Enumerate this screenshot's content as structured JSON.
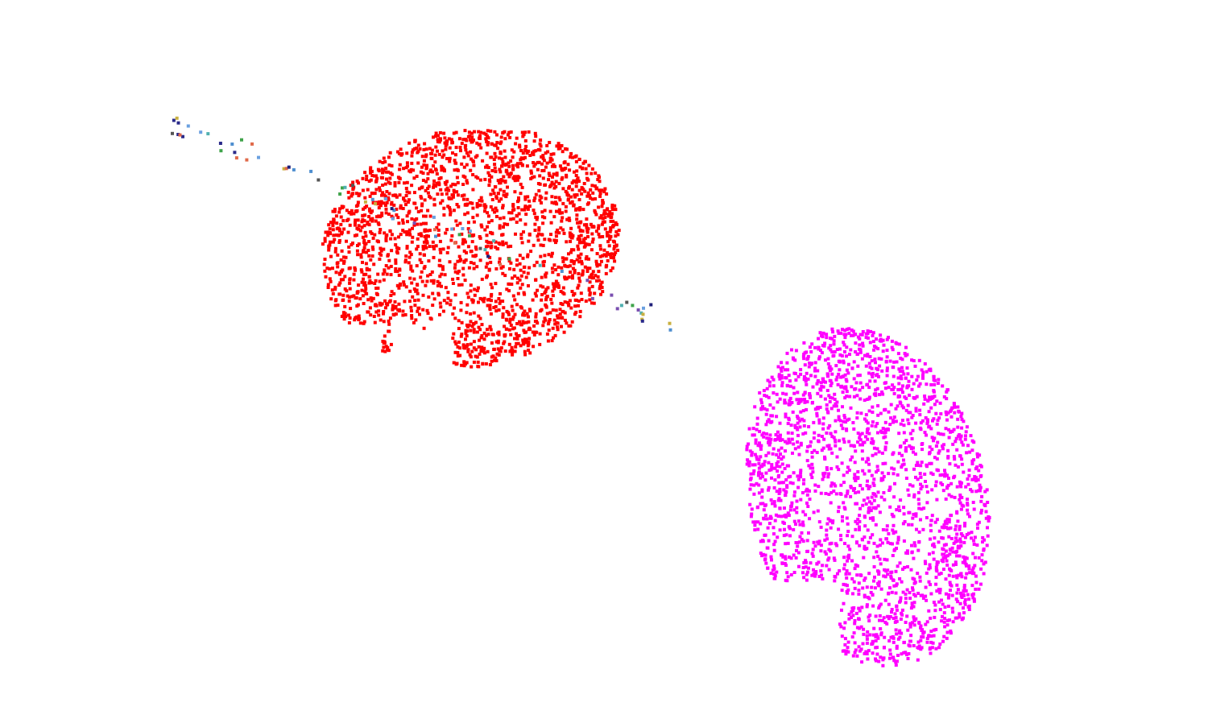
{
  "viewer": {
    "background": "#ffffff"
  },
  "clouds": [
    {
      "name": "red-point-cloud",
      "color": "#ff0000",
      "point_count": 2200
    },
    {
      "name": "magenta-point-cloud",
      "color": "#ff00ff",
      "point_count": 2200
    }
  ],
  "stray_points": {
    "colors": [
      "#1f1f7a",
      "#2a2a8a",
      "#4f8fd0",
      "#3fa34a",
      "#7a4fb0",
      "#50b0b0",
      "#e06a4a",
      "#c9b040",
      "#555555",
      "#6aa0e0"
    ],
    "count": 70
  }
}
